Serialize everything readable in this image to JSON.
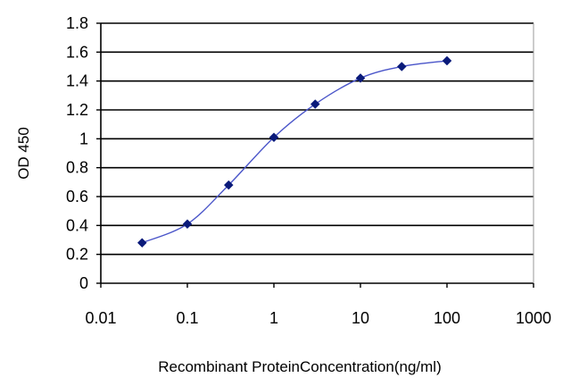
{
  "chart_data": {
    "type": "line",
    "title": "",
    "xlabel": "Recombinant ProteinConcentration(ng/ml)",
    "ylabel": "OD 450",
    "x_scale": "log",
    "xlim": [
      0.01,
      1000
    ],
    "ylim": [
      0,
      1.8
    ],
    "x_ticks": [
      "0.01",
      "0.1",
      "1",
      "10",
      "100",
      "1000"
    ],
    "y_ticks": [
      "0",
      "0.2",
      "0.4",
      "0.6",
      "0.8",
      "1",
      "1.2",
      "1.4",
      "1.6",
      "1.8"
    ],
    "grid": "horizontal",
    "legend": "none",
    "series": [
      {
        "x": [
          0.03,
          0.1,
          0.3,
          1,
          3,
          10,
          30,
          100
        ],
        "y": [
          0.28,
          0.41,
          0.68,
          1.01,
          1.24,
          1.42,
          1.5,
          1.54
        ]
      }
    ],
    "colors": {
      "line": "#4a55c9",
      "marker": "#0a1a7a",
      "grid": "#000000",
      "plot_background": "#ffffff"
    }
  }
}
